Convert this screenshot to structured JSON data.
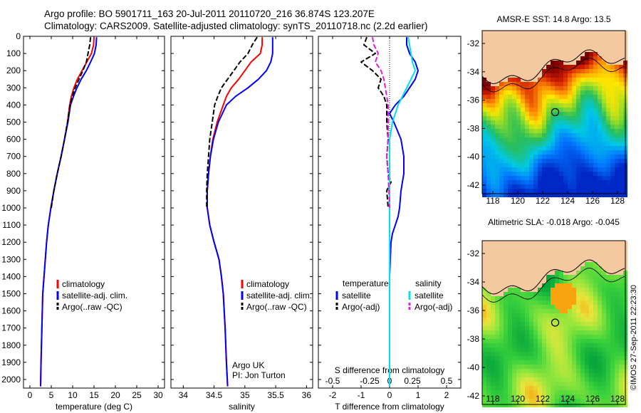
{
  "header": {
    "line1": "Argo profile: BO 5901711_163 20-Jul-2011 20110720_216 36.874S 123.207E",
    "line2": "Climatology: CARS2009. Satellite-adjusted climatology: synTS_20110718.nc (2.2d earlier)"
  },
  "credit": {
    "text": "Argo UK",
    "pi": "PI: Jon Turton",
    "side": "©IMOS 27-Sep-2011 22:23:30"
  },
  "colors": {
    "climatology": "#ff0000",
    "satellite": "#0000ff",
    "argo": "#000000",
    "sal_satellite": "#00e0ee",
    "sal_argo": "#e020e0",
    "land": "#f5c9a0"
  },
  "chart_data": [
    {
      "id": "temp",
      "type": "line",
      "xlabel": "temperature (deg C)",
      "xticks": [
        0,
        5,
        10,
        15,
        20,
        25,
        30
      ],
      "xlim": [
        -1.5,
        31.5
      ],
      "ylim": [
        0,
        2050
      ],
      "yticks": [
        0,
        100,
        200,
        300,
        400,
        500,
        600,
        700,
        800,
        900,
        1000,
        1100,
        1200,
        1300,
        1400,
        1500,
        1600,
        1700,
        1800,
        1900,
        2000
      ],
      "legend": [
        "climatology",
        "satellite-adj. clim.",
        "Argo(..raw -QC)"
      ],
      "series": [
        {
          "name": "climatology",
          "color": "#ff0000",
          "x": [
            15.0,
            14.9,
            14.4,
            13.3,
            12.2,
            11.1,
            10.3,
            9.7,
            9.3,
            8.8,
            8.1,
            7.3,
            6.4,
            5.6,
            4.9,
            4.3,
            3.9,
            3.6,
            3.3,
            3.0,
            2.8,
            2.6,
            2.5
          ],
          "y": [
            5,
            50,
            100,
            150,
            200,
            250,
            300,
            350,
            400,
            500,
            600,
            700,
            800,
            900,
            1000,
            1100,
            1200,
            1300,
            1400,
            1500,
            1700,
            1900,
            2040
          ]
        },
        {
          "name": "satellite-adj. clim.",
          "color": "#0000ff",
          "x": [
            15.6,
            15.5,
            15.1,
            14.2,
            13.2,
            12.0,
            11.0,
            10.2,
            9.5,
            8.9,
            8.1,
            7.3,
            6.4,
            5.6,
            4.9,
            4.3,
            3.9,
            3.6,
            3.3,
            3.0,
            2.8,
            2.6,
            2.5
          ],
          "y": [
            5,
            50,
            100,
            150,
            200,
            250,
            300,
            350,
            400,
            500,
            600,
            700,
            800,
            900,
            1000,
            1100,
            1200,
            1300,
            1400,
            1500,
            1700,
            1900,
            2040
          ]
        },
        {
          "name": "Argo(..raw -QC)",
          "color": "#000000",
          "dashed": true,
          "x": [
            14.2,
            14.0,
            13.6,
            13.2,
            12.4,
            11.5,
            10.6,
            9.9,
            9.4,
            8.8,
            8.1,
            7.3,
            6.4,
            5.6,
            5.0
          ],
          "y": [
            5,
            50,
            100,
            150,
            200,
            250,
            300,
            350,
            400,
            500,
            600,
            700,
            800,
            900,
            1000
          ]
        }
      ]
    },
    {
      "id": "sal",
      "type": "line",
      "xlabel": "salinity",
      "xticks": [
        34,
        34.5,
        35,
        35.5,
        36
      ],
      "xlim": [
        33.8,
        36.1
      ],
      "ylim": [
        0,
        2050
      ],
      "legend": [
        "climatology",
        "satellite-adj. clim.",
        "Argo(..raw -QC)"
      ],
      "series": [
        {
          "name": "climatology",
          "color": "#ff0000",
          "x": [
            35.28,
            35.28,
            35.25,
            35.1,
            35.0,
            34.9,
            34.78,
            34.7,
            34.65,
            34.55,
            34.48,
            34.44,
            34.41,
            34.39,
            34.39,
            34.43,
            34.5,
            34.58,
            34.62,
            34.65,
            34.68,
            34.7,
            34.72
          ],
          "y": [
            5,
            50,
            100,
            150,
            200,
            250,
            300,
            350,
            400,
            500,
            600,
            700,
            800,
            900,
            1000,
            1100,
            1200,
            1300,
            1400,
            1500,
            1700,
            1900,
            2040
          ]
        },
        {
          "name": "satellite-adj. clim.",
          "color": "#0000ff",
          "x": [
            35.45,
            35.45,
            35.45,
            35.42,
            35.35,
            35.22,
            35.05,
            34.85,
            34.7,
            34.57,
            34.49,
            34.44,
            34.41,
            34.39,
            34.39,
            34.43,
            34.5,
            34.58,
            34.62,
            34.65,
            34.68,
            34.7,
            34.72
          ],
          "y": [
            5,
            50,
            100,
            150,
            200,
            250,
            300,
            350,
            400,
            500,
            600,
            700,
            800,
            900,
            1000,
            1100,
            1200,
            1300,
            1400,
            1500,
            1700,
            1900,
            2040
          ]
        },
        {
          "name": "Argo(..raw -QC)",
          "color": "#000000",
          "dashed": true,
          "x": [
            35.2,
            35.12,
            35.05,
            34.92,
            34.82,
            34.72,
            34.62,
            34.56,
            34.51,
            34.47,
            34.43,
            34.41,
            34.39,
            34.38,
            34.38
          ],
          "y": [
            5,
            50,
            100,
            150,
            200,
            250,
            300,
            350,
            400,
            500,
            600,
            700,
            800,
            900,
            1000
          ]
        }
      ]
    },
    {
      "id": "diff",
      "type": "line",
      "xlabel": "T difference from climatology",
      "toplabel": "S difference from climatology",
      "xticks": [
        -2,
        -1,
        0,
        1,
        2
      ],
      "sticks": [
        "-0.5",
        "-0.25",
        "0",
        "0.25",
        "0.5"
      ],
      "xlim": [
        -2.5,
        2.5
      ],
      "ylim": [
        0,
        2050
      ],
      "legend_left": [
        "temperature",
        "satellite",
        "Argo(-adj)"
      ],
      "legend_right": [
        "salinity",
        "satellite",
        "Argo(-adj)"
      ],
      "series": [
        {
          "name": "T satellite",
          "color": "#0000ff",
          "x": [
            0.6,
            0.6,
            0.7,
            0.9,
            1.0,
            0.9,
            0.7,
            0.5,
            0.2,
            0.0,
            0.15,
            0.4,
            0.5,
            0.5,
            0.4,
            0.35,
            0.3,
            0.2,
            0.1,
            0.05,
            0.0,
            0.0,
            0.0
          ],
          "y": [
            5,
            50,
            100,
            150,
            200,
            250,
            300,
            350,
            400,
            450,
            500,
            600,
            700,
            800,
            900,
            1000,
            1050,
            1100,
            1150,
            1200,
            1400,
            1700,
            2040
          ]
        },
        {
          "name": "T Argo",
          "color": "#000000",
          "dashed": true,
          "x": [
            -0.8,
            -0.9,
            -0.5,
            -1.0,
            -0.6,
            -0.3,
            -0.4,
            -0.2,
            -0.1,
            -0.1,
            -0.05,
            -0.1,
            -0.05,
            0.05,
            -0.1,
            -0.05
          ],
          "y": [
            5,
            50,
            100,
            150,
            200,
            250,
            300,
            350,
            400,
            500,
            600,
            700,
            800,
            850,
            900,
            1000
          ]
        },
        {
          "name": "S satellite",
          "color": "#00e0ee",
          "x": [
            0.65,
            0.7,
            0.75,
            0.8,
            0.9,
            0.6,
            0.3,
            0.1,
            0.0,
            0.0,
            0.0
          ],
          "y": [
            5,
            50,
            100,
            150,
            200,
            300,
            400,
            500,
            600,
            1000,
            2040
          ]
        },
        {
          "name": "S Argo",
          "color": "#e020e0",
          "dashed": true,
          "x": [
            -0.6,
            -0.55,
            -0.4,
            -0.5,
            -0.3,
            -0.2,
            -0.15,
            -0.1,
            -0.05,
            -0.05,
            -0.05,
            -0.1,
            -0.05,
            0.0
          ],
          "y": [
            5,
            50,
            100,
            150,
            200,
            250,
            300,
            350,
            400,
            500,
            600,
            700,
            800,
            1000
          ]
        }
      ]
    }
  ],
  "maps": [
    {
      "id": "sst",
      "title": "AMSR-E SST: 14.8  Argo: 13.5"
    },
    {
      "id": "sla",
      "title": "Altimetric SLA: -0.018  Argo: -0.045"
    }
  ],
  "map_axes": {
    "lat": [
      "-32",
      "-34",
      "-36",
      "-38",
      "-40",
      "-42"
    ],
    "lon": [
      "118",
      "120",
      "122",
      "124",
      "126",
      "128"
    ]
  }
}
